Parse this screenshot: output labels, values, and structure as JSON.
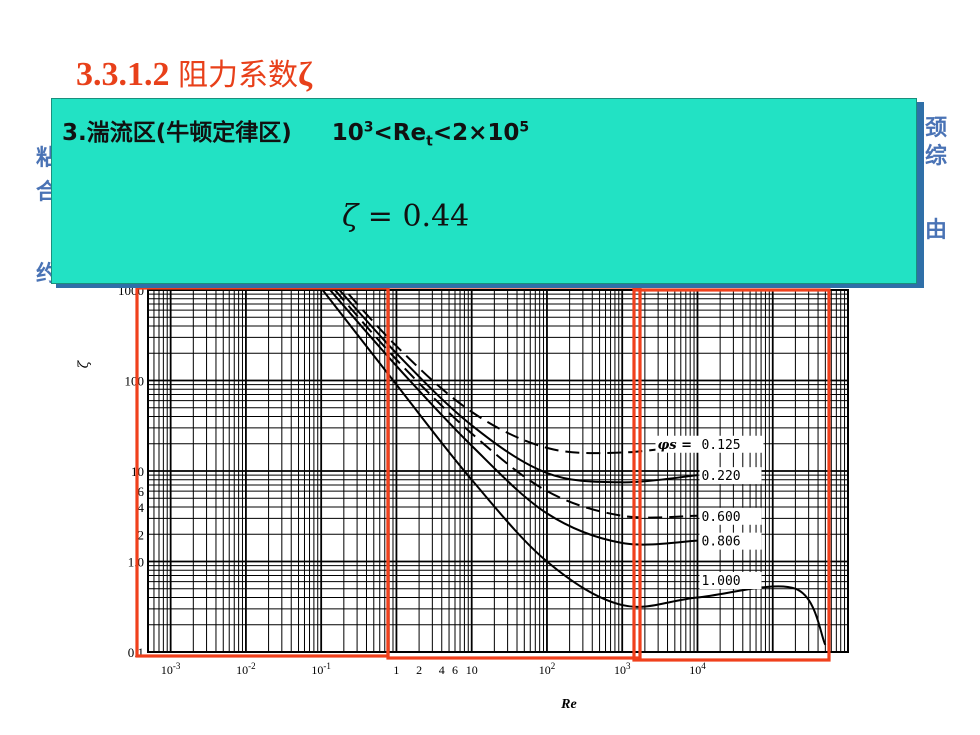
{
  "slide": {
    "title_num": "3.3.1.2 ",
    "title_text": "阻力系数",
    "title_symbol": "ζ",
    "side_fragments": [
      "粘",
      "合",
      "约",
      "颈",
      "综",
      "由"
    ]
  },
  "callout": {
    "heading_text": "3.湍流区(牛顿定律区)",
    "range_a": "10",
    "range_a_sup": "3",
    "range_b": "<Re",
    "range_b_sub": "t",
    "range_c": "<2×10",
    "range_c_sup": "5",
    "formula_symbol": "ζ",
    "formula_rest": " = 0.44"
  },
  "colors": {
    "title": "#e8401a",
    "callout_bg": "#22e2c4",
    "callout_shadow": "#2f6fa8",
    "highlight_box": "#f0401c",
    "curve": "#000000"
  },
  "chart_data": {
    "type": "line",
    "title": "",
    "xlabel": "Re",
    "ylabel": "ζ",
    "x_scale": "log",
    "y_scale": "log",
    "xlim": [
      0.0005,
      1000000
    ],
    "ylim": [
      0.1,
      1000
    ],
    "x_tick_labels": [
      {
        "value": 0.001,
        "base": "10",
        "exp": "-3"
      },
      {
        "value": 0.01,
        "base": "10",
        "exp": "-2"
      },
      {
        "value": 0.1,
        "base": "10",
        "exp": "-1"
      },
      {
        "value": 1,
        "base": "1",
        "exp": ""
      },
      {
        "value": 2,
        "base": "2",
        "exp": ""
      },
      {
        "value": 4,
        "base": "4",
        "exp": ""
      },
      {
        "value": 6,
        "base": "6",
        "exp": ""
      },
      {
        "value": 10,
        "base": "10",
        "exp": ""
      },
      {
        "value": 100,
        "base": "10",
        "exp": "2"
      },
      {
        "value": 1000,
        "base": "10",
        "exp": "3"
      },
      {
        "value": 10000,
        "base": "10",
        "exp": "4"
      }
    ],
    "y_tick_labels": [
      {
        "value": 1000,
        "label": "1000"
      },
      {
        "value": 100,
        "label": "100"
      },
      {
        "value": 10,
        "label": "10"
      },
      {
        "value": 6,
        "label": "6"
      },
      {
        "value": 4,
        "label": "4"
      },
      {
        "value": 2,
        "label": "2"
      },
      {
        "value": 1,
        "label": "1.0"
      },
      {
        "value": 0.1,
        "label": "0.1"
      }
    ],
    "grid": true,
    "series": [
      {
        "name": "φs = 0.125",
        "label_main": "0.125",
        "dashed": true,
        "points": [
          [
            0.1,
            2000
          ],
          [
            1,
            240
          ],
          [
            10,
            45
          ],
          [
            100,
            18
          ],
          [
            1000,
            16
          ],
          [
            10000,
            20
          ]
        ]
      },
      {
        "name": "0.220",
        "label_main": "0.220",
        "dashed": false,
        "points": [
          [
            0.1,
            1700
          ],
          [
            1,
            200
          ],
          [
            10,
            32
          ],
          [
            100,
            9.5
          ],
          [
            1000,
            7.5
          ],
          [
            10000,
            9
          ]
        ]
      },
      {
        "name": "0.600",
        "label_main": "0.600",
        "dashed": true,
        "points": [
          [
            0.1,
            1500
          ],
          [
            1,
            170
          ],
          [
            10,
            26
          ],
          [
            100,
            6
          ],
          [
            1000,
            3.2
          ],
          [
            10000,
            3.2
          ]
        ]
      },
      {
        "name": "0.806",
        "label_main": "0.806",
        "dashed": false,
        "points": [
          [
            0.1,
            1300
          ],
          [
            1,
            145
          ],
          [
            10,
            19
          ],
          [
            100,
            3.4
          ],
          [
            1000,
            1.6
          ],
          [
            10000,
            1.7
          ]
        ]
      },
      {
        "name": "1.000",
        "label_main": "1.000",
        "dashed": false,
        "points": [
          [
            0.1,
            1050
          ],
          [
            1,
            90
          ],
          [
            10,
            8
          ],
          [
            100,
            1.0
          ],
          [
            1000,
            0.33
          ],
          [
            10000,
            0.4
          ],
          [
            200000,
            0.5
          ],
          [
            500000,
            0.12
          ]
        ]
      }
    ],
    "highlight_regions": [
      {
        "name": "stokes-region",
        "x_from": 0.0005,
        "x_to": 1
      },
      {
        "name": "transition-region",
        "x_from": 1,
        "x_to": 700
      },
      {
        "name": "newton-region",
        "x_from": 700,
        "x_to": 200000
      }
    ]
  }
}
